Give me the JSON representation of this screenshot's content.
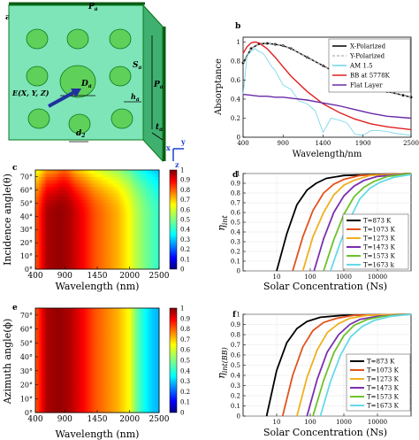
{
  "figure": {
    "panel_labels": [
      "a",
      "b",
      "c",
      "d",
      "e",
      "f"
    ]
  },
  "panel_a": {
    "labels": {
      "pa_top": "P",
      "pa_top_sub": "a",
      "pa_side": "P",
      "pa_side_sub": "a",
      "sa": "S",
      "sa_sub": "a",
      "da": "D",
      "da_sub": "a",
      "ha": "h",
      "ha_sub": "a",
      "ta": "t",
      "ta_sub": "a",
      "d2": "d",
      "d2_sub": "2",
      "efield": "E(X, Y, Z)",
      "axis_x": "x",
      "axis_y": "y",
      "axis_z": "z"
    },
    "colors": {
      "substrate": "#7ee5b8",
      "disk": "#5fd05a",
      "edge": "#0b7a1c"
    }
  },
  "chart_data": [
    {
      "panel": "b",
      "type": "line",
      "xlabel": "Wavelength/nm",
      "ylabel": "Absorptance",
      "xlim": [
        400,
        2500
      ],
      "ylim": [
        0,
        1.05
      ],
      "xticks": [
        "400",
        "900",
        "1400",
        "1900",
        "2500"
      ],
      "xtick_values": [
        400,
        900,
        1400,
        1900,
        2500
      ],
      "yticks": [
        "0",
        "0.2",
        "0.4",
        "0.6",
        "0.8",
        "1"
      ],
      "legend_position": "top-right",
      "series": [
        {
          "name": "X-Polarized",
          "color": "#000000",
          "x": [
            400,
            500,
            600,
            700,
            800,
            900,
            1000,
            1200,
            1400,
            1600,
            1800,
            2000,
            2200,
            2400,
            2500
          ],
          "y": [
            0.78,
            0.93,
            0.98,
            0.985,
            0.975,
            0.96,
            0.93,
            0.84,
            0.75,
            0.66,
            0.59,
            0.53,
            0.48,
            0.44,
            0.42
          ]
        },
        {
          "name": "Y-Polarized",
          "color": "#bdbdbd",
          "x": [
            400,
            500,
            600,
            700,
            800,
            900,
            1000,
            1200,
            1400,
            1600,
            1800,
            2000,
            2200,
            2400,
            2500
          ],
          "y": [
            0.78,
            0.93,
            0.98,
            0.985,
            0.975,
            0.96,
            0.93,
            0.84,
            0.75,
            0.66,
            0.59,
            0.53,
            0.48,
            0.44,
            0.42
          ]
        },
        {
          "name": "AM 1.5",
          "color": "#6ed3e6",
          "x": [
            400,
            450,
            500,
            550,
            600,
            650,
            700,
            750,
            800,
            900,
            1000,
            1100,
            1200,
            1300,
            1400,
            1500,
            1600,
            1700,
            1800,
            1900,
            2000,
            2100,
            2200,
            2300,
            2500
          ],
          "y": [
            0.45,
            0.85,
            0.9,
            0.93,
            0.9,
            0.88,
            0.82,
            0.75,
            0.7,
            0.55,
            0.5,
            0.38,
            0.35,
            0.28,
            0.05,
            0.2,
            0.18,
            0.15,
            0.03,
            0.02,
            0.07,
            0.07,
            0.06,
            0.04,
            0.02
          ]
        },
        {
          "name": "BB at 5778K",
          "color": "#e02020",
          "x": [
            400,
            450,
            500,
            550,
            600,
            700,
            800,
            900,
            1000,
            1200,
            1400,
            1600,
            1800,
            2000,
            2200,
            2500
          ],
          "y": [
            0.88,
            0.95,
            0.99,
            1.0,
            0.99,
            0.93,
            0.84,
            0.74,
            0.64,
            0.48,
            0.35,
            0.26,
            0.19,
            0.14,
            0.11,
            0.08
          ]
        },
        {
          "name": "Flat Layer",
          "color": "#6a2aa8",
          "x": [
            400,
            500,
            600,
            700,
            800,
            900,
            1000,
            1200,
            1400,
            1600,
            1800,
            2000,
            2200,
            2500
          ],
          "y": [
            0.45,
            0.44,
            0.43,
            0.43,
            0.42,
            0.42,
            0.41,
            0.39,
            0.36,
            0.33,
            0.29,
            0.25,
            0.22,
            0.2
          ]
        }
      ]
    },
    {
      "panel": "c",
      "type": "heatmap",
      "xlabel": "Wavelength (nm)",
      "ylabel": "Incidence angle(θ)",
      "xlim": [
        400,
        2500
      ],
      "ylim": [
        0,
        75
      ],
      "xticks": [
        "400",
        "900",
        "1450",
        "2000",
        "2500"
      ],
      "xtick_values": [
        400,
        900,
        1450,
        2000,
        2500
      ],
      "yticks": [
        "0°",
        "10°",
        "20°",
        "30°",
        "40°",
        "50°",
        "60°",
        "70°"
      ],
      "ytick_values": [
        0,
        10,
        20,
        30,
        40,
        50,
        60,
        70
      ],
      "colorbar_ticks": [
        "0",
        "0.1",
        "0.2",
        "0.3",
        "0.4",
        "0.5",
        "0.6",
        "0.7",
        "0.8",
        "0.9",
        "1"
      ],
      "z_range": [
        0,
        1
      ],
      "profile_wavelength": [
        400,
        600,
        800,
        1000,
        1200,
        1400,
        1600,
        1800,
        2000,
        2100,
        2200,
        2300,
        2400,
        2500
      ],
      "profile_absorptance": [
        0.78,
        0.96,
        0.98,
        0.95,
        0.88,
        0.8,
        0.75,
        0.7,
        0.62,
        0.56,
        0.52,
        0.48,
        0.45,
        0.42
      ]
    },
    {
      "panel": "d",
      "type": "line",
      "xlabel": "Solar Concentration (Ns)",
      "ylabel": "η_int",
      "xscale": "log",
      "xlim": [
        1,
        100000
      ],
      "ylim": [
        0,
        1
      ],
      "xticks": [
        "10",
        "100",
        "1000",
        "10000"
      ],
      "xtick_values": [
        10,
        100,
        1000,
        10000
      ],
      "yticks": [
        "0",
        "0.1",
        "0.2",
        "0.3",
        "0.4",
        "0.5",
        "0.6",
        "0.7",
        "0.8",
        "0.9",
        "1"
      ],
      "legend_position": "right",
      "series": [
        {
          "name": "T=873 K",
          "color": "#000000",
          "x": [
            10,
            20,
            40,
            80,
            150,
            300,
            1000,
            100000
          ],
          "y": [
            0.0,
            0.38,
            0.68,
            0.83,
            0.9,
            0.95,
            0.98,
            1.0
          ]
        },
        {
          "name": "T=1073 K",
          "color": "#e2531e",
          "x": [
            30,
            60,
            120,
            250,
            500,
            1000,
            3000,
            100000
          ],
          "y": [
            0.0,
            0.35,
            0.62,
            0.8,
            0.89,
            0.94,
            0.98,
            1.0
          ]
        },
        {
          "name": "T=1273 K",
          "color": "#f0b020",
          "x": [
            60,
            120,
            250,
            500,
            1000,
            2000,
            6000,
            100000
          ],
          "y": [
            0.0,
            0.35,
            0.6,
            0.78,
            0.88,
            0.93,
            0.98,
            1.0
          ]
        },
        {
          "name": "T=1473 K",
          "color": "#7b2fb0",
          "x": [
            130,
            250,
            500,
            1000,
            2000,
            4000,
            10000,
            100000
          ],
          "y": [
            0.0,
            0.33,
            0.6,
            0.77,
            0.87,
            0.93,
            0.97,
            1.0
          ]
        },
        {
          "name": "T=1573 K",
          "color": "#6cc22a",
          "x": [
            250,
            500,
            1000,
            2000,
            4000,
            8000,
            20000,
            100000
          ],
          "y": [
            0.0,
            0.32,
            0.58,
            0.76,
            0.86,
            0.92,
            0.97,
            1.0
          ]
        },
        {
          "name": "T=1673 k",
          "color": "#66d9e8",
          "x": [
            400,
            800,
            1600,
            3000,
            6000,
            12000,
            30000,
            100000
          ],
          "y": [
            0.0,
            0.3,
            0.55,
            0.74,
            0.85,
            0.91,
            0.96,
            0.99
          ]
        }
      ]
    },
    {
      "panel": "e",
      "type": "heatmap",
      "xlabel": "Wavelength (nm)",
      "ylabel": "Azimuth angle(ϕ)",
      "xlim": [
        400,
        2500
      ],
      "ylim": [
        0,
        75
      ],
      "xticks": [
        "400",
        "900",
        "1450",
        "2000",
        "2500"
      ],
      "xtick_values": [
        400,
        900,
        1450,
        2000,
        2500
      ],
      "yticks": [
        "0°",
        "10°",
        "20°",
        "30°",
        "40°",
        "50°",
        "60°",
        "70°"
      ],
      "ytick_values": [
        0,
        10,
        20,
        30,
        40,
        50,
        60,
        70
      ],
      "colorbar_ticks": [
        "0",
        "0.1",
        "0.2",
        "0.3",
        "0.4",
        "0.5",
        "0.6",
        "0.7",
        "0.8",
        "0.9",
        "1"
      ],
      "z_range": [
        0,
        1
      ],
      "profile_wavelength": [
        400,
        600,
        800,
        1000,
        1200,
        1400,
        1600,
        1800,
        2000,
        2100,
        2200,
        2300,
        2400,
        2500
      ],
      "profile_absorptance": [
        0.78,
        0.96,
        0.98,
        0.95,
        0.88,
        0.8,
        0.75,
        0.7,
        0.62,
        0.5,
        0.42,
        0.36,
        0.32,
        0.3
      ]
    },
    {
      "panel": "f",
      "type": "line",
      "xlabel": "Solar Concentration (Ns)",
      "ylabel": "η_int(BB)",
      "xscale": "log",
      "xlim": [
        1,
        100000
      ],
      "ylim": [
        0,
        1
      ],
      "xticks": [
        "10",
        "100",
        "1000",
        "10000"
      ],
      "xtick_values": [
        10,
        100,
        1000,
        10000
      ],
      "yticks": [
        "0",
        "0.1",
        "0.2",
        "0.3",
        "0.4",
        "0.5",
        "0.6",
        "0.7",
        "0.8",
        "0.9",
        "1"
      ],
      "legend_position": "right",
      "series": [
        {
          "name": "T=873 K",
          "color": "#000000",
          "x": [
            5,
            10,
            20,
            40,
            80,
            200,
            1000,
            100000
          ],
          "y": [
            0.0,
            0.45,
            0.72,
            0.86,
            0.93,
            0.97,
            0.99,
            1.0
          ]
        },
        {
          "name": "T=1073 K",
          "color": "#e2531e",
          "x": [
            15,
            30,
            60,
            120,
            250,
            600,
            2000,
            100000
          ],
          "y": [
            0.0,
            0.4,
            0.68,
            0.84,
            0.92,
            0.96,
            0.99,
            1.0
          ]
        },
        {
          "name": "T=1273 K",
          "color": "#f0b020",
          "x": [
            40,
            80,
            160,
            320,
            700,
            1500,
            5000,
            100000
          ],
          "y": [
            0.0,
            0.38,
            0.65,
            0.82,
            0.91,
            0.96,
            0.99,
            1.0
          ]
        },
        {
          "name": "T=1473 K",
          "color": "#7b2fb0",
          "x": [
            80,
            160,
            320,
            700,
            1500,
            3000,
            10000,
            100000
          ],
          "y": [
            0.0,
            0.36,
            0.63,
            0.8,
            0.9,
            0.95,
            0.98,
            1.0
          ]
        },
        {
          "name": "T=1573 K",
          "color": "#6cc22a",
          "x": [
            120,
            250,
            500,
            1000,
            2000,
            5000,
            15000,
            100000
          ],
          "y": [
            0.0,
            0.35,
            0.62,
            0.79,
            0.89,
            0.95,
            0.98,
            1.0
          ]
        },
        {
          "name": "T=1673 K",
          "color": "#66d9e8",
          "x": [
            200,
            400,
            800,
            1600,
            3500,
            8000,
            25000,
            100000
          ],
          "y": [
            0.0,
            0.34,
            0.6,
            0.78,
            0.88,
            0.94,
            0.98,
            1.0
          ]
        }
      ]
    }
  ]
}
